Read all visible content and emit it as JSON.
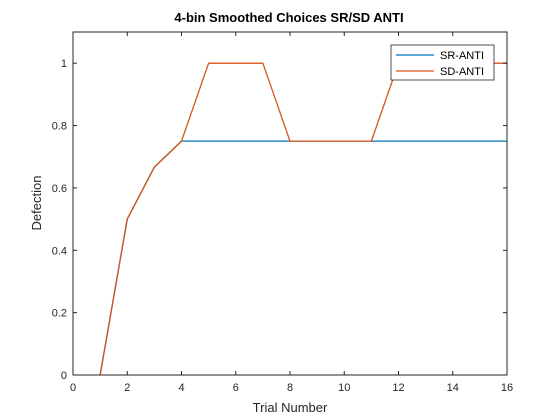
{
  "chart_data": {
    "type": "line",
    "title": "4-bin Smoothed Choices SR/SD ANTI",
    "xlabel": "Trial Number",
    "ylabel": "Defection",
    "xlim": [
      0,
      16
    ],
    "ylim": [
      0,
      1.1
    ],
    "xticks": [
      0,
      2,
      4,
      6,
      8,
      10,
      12,
      14,
      16
    ],
    "yticks": [
      0,
      0.2,
      0.4,
      0.6,
      0.8,
      1
    ],
    "xtick_labels": [
      "0",
      "2",
      "4",
      "6",
      "8",
      "10",
      "12",
      "14",
      "16"
    ],
    "ytick_labels": [
      "0",
      "0.2",
      "0.4",
      "0.6",
      "0.8",
      "1"
    ],
    "grid": false,
    "legend_position": "top-right",
    "series": [
      {
        "name": "SR-ANTI",
        "color": "#0072BD",
        "x": [
          1,
          2,
          3,
          4,
          5,
          6,
          7,
          8,
          9,
          10,
          11,
          12,
          13,
          14,
          15,
          16
        ],
        "y": [
          0,
          0.5,
          0.6667,
          0.75,
          0.75,
          0.75,
          0.75,
          0.75,
          0.75,
          0.75,
          0.75,
          0.75,
          0.75,
          0.75,
          0.75,
          0.75
        ]
      },
      {
        "name": "SD-ANTI",
        "color": "#D95319",
        "x": [
          1,
          2,
          3,
          4,
          5,
          6,
          7,
          8,
          9,
          10,
          11,
          12,
          13,
          14,
          15,
          16
        ],
        "y": [
          0,
          0.5,
          0.6667,
          0.75,
          1,
          1,
          1,
          0.75,
          0.75,
          0.75,
          0.75,
          1,
          1,
          1,
          1,
          1
        ]
      }
    ]
  }
}
